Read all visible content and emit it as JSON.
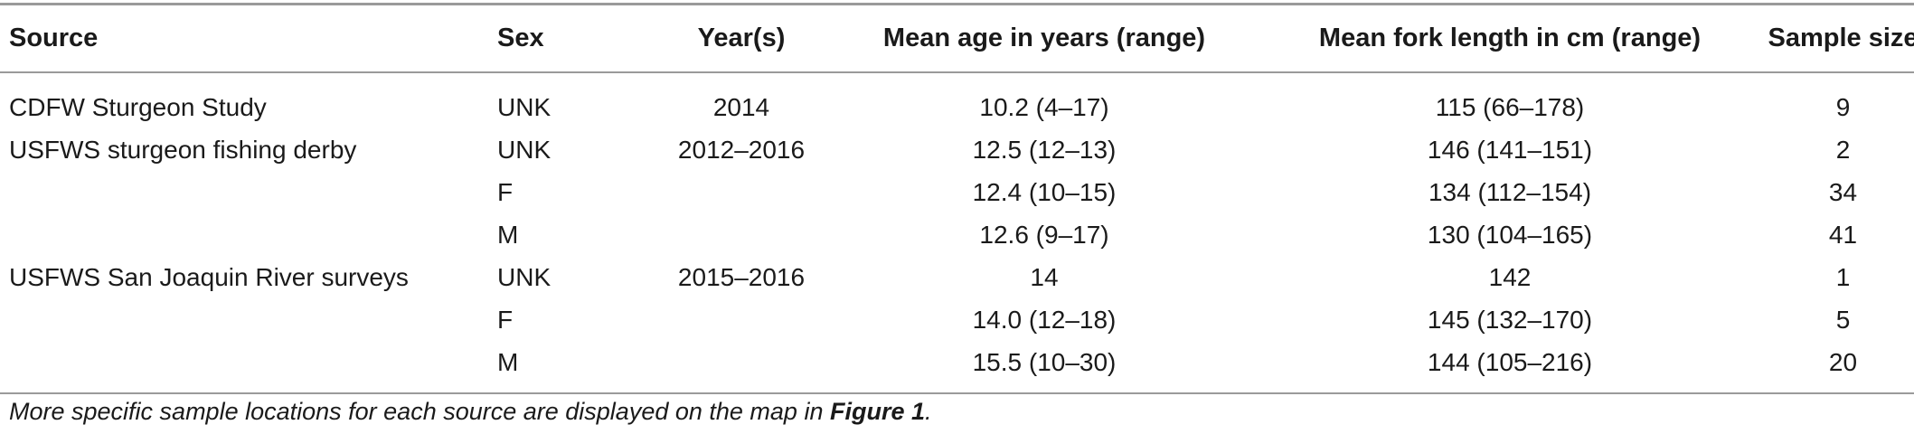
{
  "table": {
    "headers": {
      "source": "Source",
      "sex": "Sex",
      "years": "Year(s)",
      "age": "Mean age in years (range)",
      "length": "Mean fork length in cm (range)",
      "sample": "Sample size"
    },
    "rows": [
      {
        "source": "CDFW Sturgeon Study",
        "sex": "UNK",
        "years": "2014",
        "age": "10.2 (4–17)",
        "length": "115 (66–178)",
        "sample": "9"
      },
      {
        "source": "USFWS sturgeon fishing derby",
        "sex": "UNK",
        "years": "2012–2016",
        "age": "12.5 (12–13)",
        "length": "146 (141–151)",
        "sample": "2"
      },
      {
        "source": "",
        "sex": "F",
        "years": "",
        "age": "12.4 (10–15)",
        "length": "134 (112–154)",
        "sample": "34"
      },
      {
        "source": "",
        "sex": "M",
        "years": "",
        "age": "12.6 (9–17)",
        "length": "130 (104–165)",
        "sample": "41"
      },
      {
        "source": "USFWS San Joaquin River surveys",
        "sex": "UNK",
        "years": "2015–2016",
        "age": "14",
        "length": "142",
        "sample": "1"
      },
      {
        "source": "",
        "sex": "F",
        "years": "",
        "age": "14.0 (12–18)",
        "length": "145 (132–170)",
        "sample": "5"
      },
      {
        "source": "",
        "sex": "M",
        "years": "",
        "age": "15.5 (10–30)",
        "length": "144 (105–216)",
        "sample": "20"
      }
    ]
  },
  "footnote": {
    "text": "More specific sample locations for each source are displayed on the map in ",
    "figure_ref": "Figure 1",
    "end": "."
  }
}
